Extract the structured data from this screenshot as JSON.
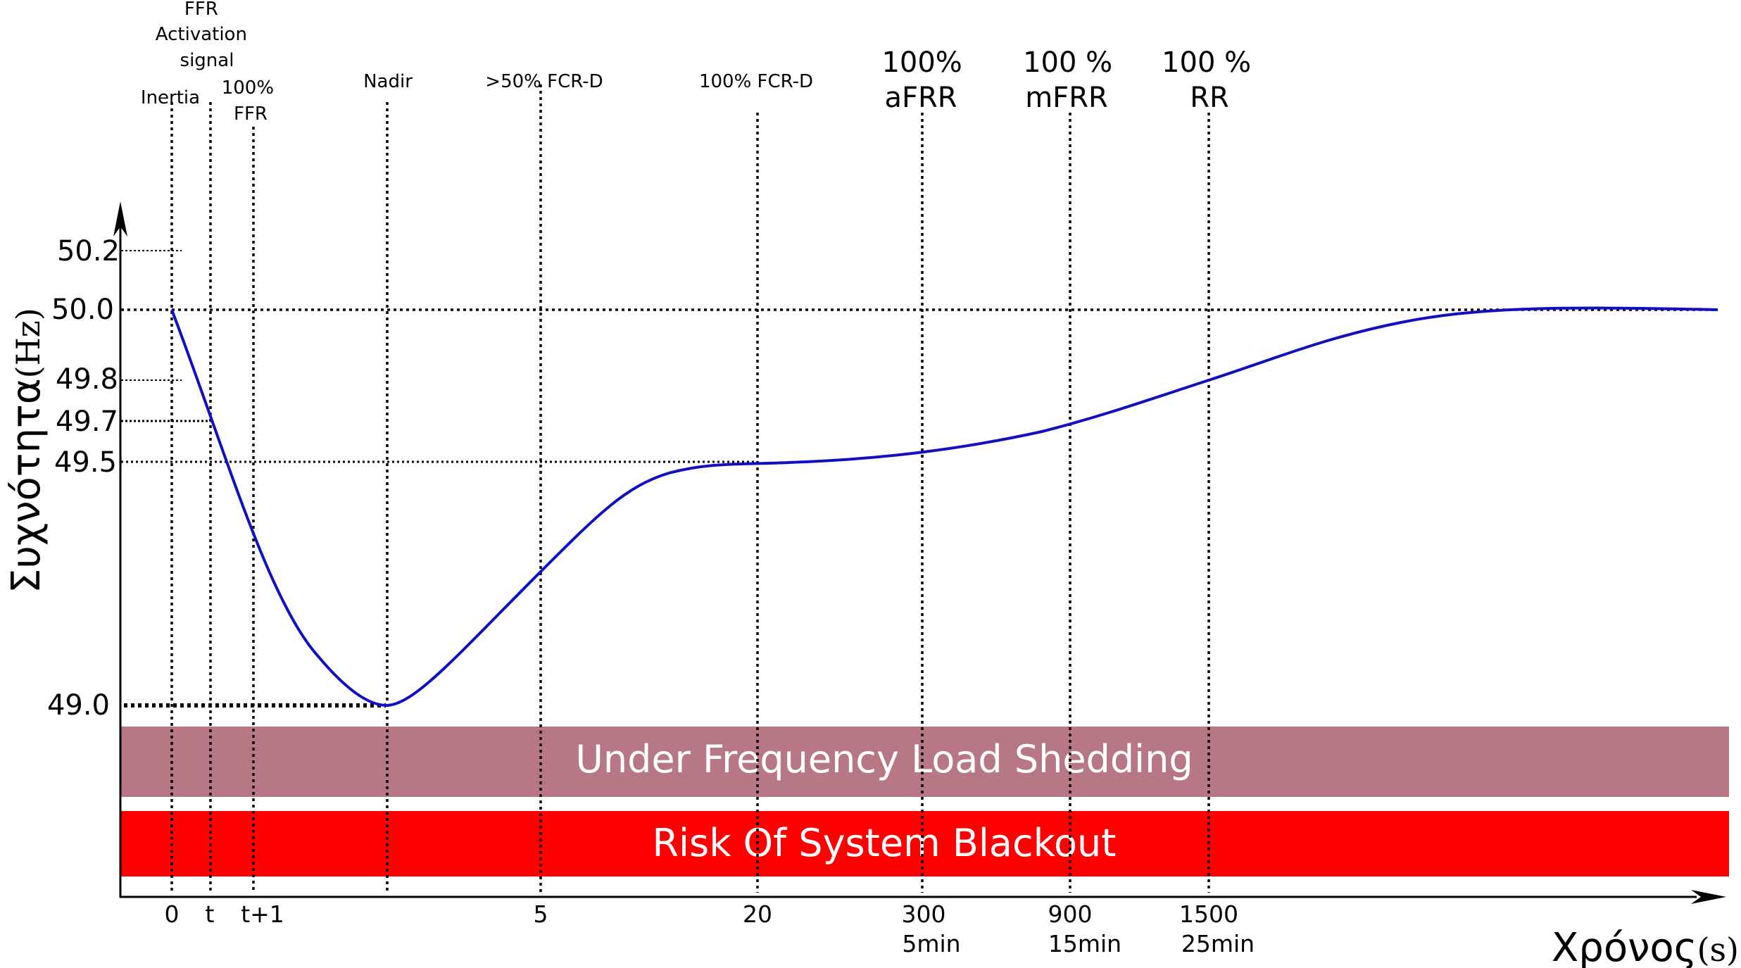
{
  "axes": {
    "y_label": "Συχνότητα",
    "y_unit": "(Hz)",
    "x_label": "Χρόνος",
    "x_unit": "(s)"
  },
  "y_ticks": [
    "50.2",
    "50.0",
    "49.8",
    "49.7",
    "49.5",
    "49.0"
  ],
  "x_ticks": [
    {
      "label": "0",
      "sub": ""
    },
    {
      "label": "t",
      "sub": ""
    },
    {
      "label": "t+1",
      "sub": ""
    },
    {
      "label": "5",
      "sub": ""
    },
    {
      "label": "20",
      "sub": ""
    },
    {
      "label": "300",
      "sub": "5min"
    },
    {
      "label": "900",
      "sub": "15min"
    },
    {
      "label": "1500",
      "sub": "25min"
    }
  ],
  "stages": {
    "inertia": "Inertia",
    "ffr_activation": [
      "FFR",
      "Activation",
      "signal"
    ],
    "ffr_full": [
      "100%",
      "FFR"
    ],
    "nadir": "Nadir",
    "fcr_d_half": ">50% FCR-D",
    "fcr_d_full": "100% FCR-D",
    "afrr": [
      "100%",
      "aFRR"
    ],
    "mfrr": [
      "100 %",
      "mFRR"
    ],
    "rr": [
      "100 %",
      "RR"
    ]
  },
  "bands": {
    "ufls": {
      "label": "Under Frequency Load Shedding",
      "color": "#b87785"
    },
    "blackout": {
      "label": "Risk Of System Blackout",
      "color": "#ff0000"
    }
  },
  "colors": {
    "curve": "#1010c0",
    "axis": "#000000"
  }
}
